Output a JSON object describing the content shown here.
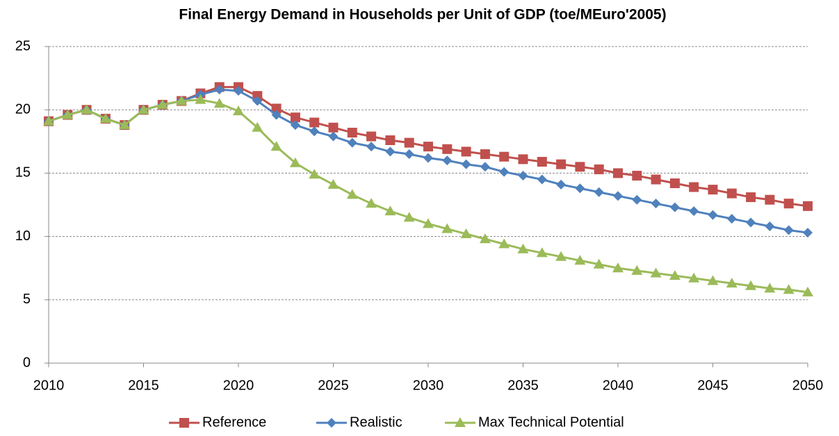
{
  "chart_data": {
    "type": "line",
    "title": "Final Energy Demand in Households per Unit of GDP (toe/MEuro'2005)",
    "x": [
      2010,
      2011,
      2012,
      2013,
      2014,
      2015,
      2016,
      2017,
      2018,
      2019,
      2020,
      2021,
      2022,
      2023,
      2024,
      2025,
      2026,
      2027,
      2028,
      2029,
      2030,
      2031,
      2032,
      2033,
      2034,
      2035,
      2036,
      2037,
      2038,
      2039,
      2040,
      2041,
      2042,
      2043,
      2044,
      2045,
      2046,
      2047,
      2048,
      2049,
      2050
    ],
    "series": [
      {
        "name": "Reference",
        "color": "#c0504d",
        "marker": "square",
        "values": [
          19.1,
          19.6,
          20.0,
          19.3,
          18.8,
          20.0,
          20.4,
          20.7,
          21.3,
          21.8,
          21.8,
          21.1,
          20.1,
          19.4,
          19.0,
          18.6,
          18.2,
          17.9,
          17.6,
          17.4,
          17.1,
          16.9,
          16.7,
          16.5,
          16.3,
          16.1,
          15.9,
          15.7,
          15.5,
          15.3,
          15.0,
          14.8,
          14.5,
          14.2,
          13.9,
          13.7,
          13.4,
          13.1,
          12.9,
          12.6,
          12.4
        ]
      },
      {
        "name": "Realistic",
        "color": "#4f81bd",
        "marker": "diamond",
        "values": [
          19.1,
          19.6,
          20.0,
          19.3,
          18.8,
          20.0,
          20.4,
          20.7,
          21.2,
          21.6,
          21.5,
          20.7,
          19.6,
          18.8,
          18.3,
          17.9,
          17.4,
          17.1,
          16.7,
          16.5,
          16.2,
          16.0,
          15.7,
          15.5,
          15.1,
          14.8,
          14.5,
          14.1,
          13.8,
          13.5,
          13.2,
          12.9,
          12.6,
          12.3,
          12.0,
          11.7,
          11.4,
          11.1,
          10.8,
          10.5,
          10.3
        ]
      },
      {
        "name": "Max Technical Potential",
        "color": "#9bbb59",
        "marker": "triangle",
        "values": [
          19.1,
          19.6,
          20.0,
          19.3,
          18.8,
          20.0,
          20.4,
          20.7,
          20.8,
          20.5,
          19.9,
          18.6,
          17.1,
          15.8,
          14.9,
          14.1,
          13.3,
          12.6,
          12.0,
          11.5,
          11.0,
          10.6,
          10.2,
          9.8,
          9.4,
          9.0,
          8.7,
          8.4,
          8.1,
          7.8,
          7.5,
          7.3,
          7.1,
          6.9,
          6.7,
          6.5,
          6.3,
          6.1,
          5.9,
          5.8,
          5.6
        ]
      }
    ],
    "xlim": [
      2010,
      2050
    ],
    "xticks": [
      2010,
      2015,
      2020,
      2025,
      2030,
      2035,
      2040,
      2045,
      2050
    ],
    "ylim": [
      0,
      25
    ],
    "yticks": [
      0,
      5,
      10,
      15,
      20,
      25
    ],
    "grid": true,
    "legend": "bottom"
  }
}
